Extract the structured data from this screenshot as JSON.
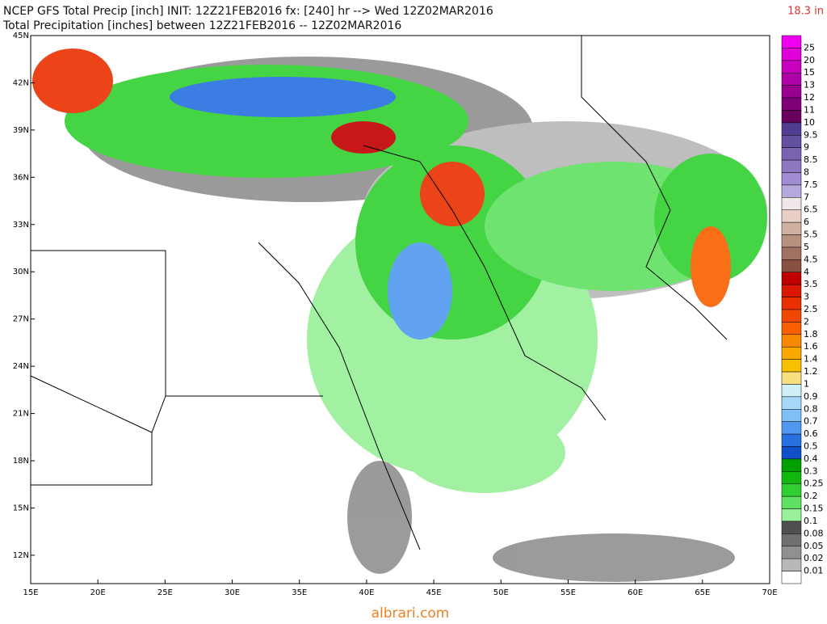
{
  "header": {
    "title": "NCEP GFS Total Precip [inch] INIT: 12Z21FEB2016 fx: [240] hr --> Wed 12Z02MAR2016",
    "subtitle": "Total Precipitation [inches] between 12Z21FEB2016 -- 12Z02MAR2016",
    "max_label": "18.3 in"
  },
  "map": {
    "lat_labels": [
      "45N",
      "42N",
      "39N",
      "36N",
      "33N",
      "30N",
      "27N",
      "24N",
      "21N",
      "18N",
      "15N",
      "12N"
    ],
    "lon_labels": [
      "15E",
      "20E",
      "25E",
      "30E",
      "35E",
      "40E",
      "45E",
      "50E",
      "55E",
      "60E",
      "65E",
      "70E"
    ]
  },
  "legend": {
    "labels": [
      "25",
      "20",
      "15",
      "13",
      "12",
      "11",
      "10",
      "9.5",
      "9",
      "8.5",
      "8",
      "7.5",
      "7",
      "6.5",
      "6",
      "5.5",
      "5",
      "4.5",
      "4",
      "3.5",
      "3",
      "2.5",
      "2",
      "1.8",
      "1.6",
      "1.4",
      "1.2",
      "1",
      "0.9",
      "0.8",
      "0.7",
      "0.6",
      "0.5",
      "0.4",
      "0.3",
      "0.25",
      "0.2",
      "0.15",
      "0.1",
      "0.08",
      "0.05",
      "0.02",
      "0.01"
    ],
    "colors": [
      "#f000f0",
      "#e000d8",
      "#c800c0",
      "#b000a8",
      "#980090",
      "#800078",
      "#680060",
      "#503c90",
      "#6450a0",
      "#7864b0",
      "#8c78c0",
      "#a08cd0",
      "#b4a8dc",
      "#f0e8e8",
      "#e8d0c8",
      "#d0b0a0",
      "#b89080",
      "#a07060",
      "#885040",
      "#c00000",
      "#d81800",
      "#e83000",
      "#f04800",
      "#f86000",
      "#f88800",
      "#f8a800",
      "#f8c000",
      "#f8e080",
      "#d0f0f8",
      "#a8d8f8",
      "#80c0f8",
      "#5098f0",
      "#2870e0",
      "#1050c8",
      "#00a000",
      "#10b810",
      "#30d030",
      "#60e060",
      "#98f098",
      "#505050",
      "#707070",
      "#909090",
      "#b8b8b8",
      "#ffffff"
    ]
  },
  "watermark": "albrari.com"
}
